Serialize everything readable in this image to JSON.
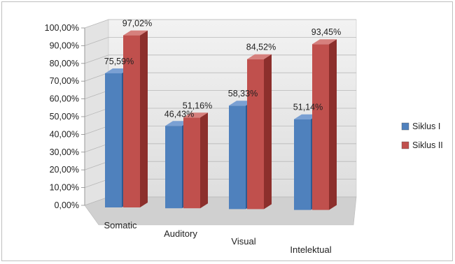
{
  "chart_data": {
    "type": "bar",
    "categories": [
      "Somatic",
      "Auditory",
      "Visual",
      "Intelektual"
    ],
    "series": [
      {
        "name": "Siklus I",
        "values": [
          75.59,
          46.43,
          58.33,
          51.14
        ],
        "labels": [
          "75,59%",
          "46,43%",
          "58,33%",
          "51,14%"
        ]
      },
      {
        "name": "Siklus II",
        "values": [
          97.02,
          51.16,
          84.52,
          93.45
        ],
        "labels": [
          "97,02%",
          "51,16%",
          "84,52%",
          "93,45%"
        ]
      }
    ],
    "yticks": [
      "0,00%",
      "10,00%",
      "20,00%",
      "30,00%",
      "40,00%",
      "50,00%",
      "60,00%",
      "70,00%",
      "80,00%",
      "90,00%",
      "100,00%"
    ],
    "ylim": [
      0,
      100
    ],
    "grid": true,
    "legend_position": "right",
    "style": "3d-clustered-column"
  },
  "colors": {
    "siklus1_front": "#4f81bd",
    "siklus1_side": "#2e5a91",
    "siklus1_top": "#7aa0d3",
    "siklus2_front": "#c0504d",
    "siklus2_side": "#8c2f2c",
    "siklus2_top": "#d6807d",
    "wall": "#eaeaea",
    "floor": "#d0d0d0",
    "grid": "#b8b8b8"
  }
}
